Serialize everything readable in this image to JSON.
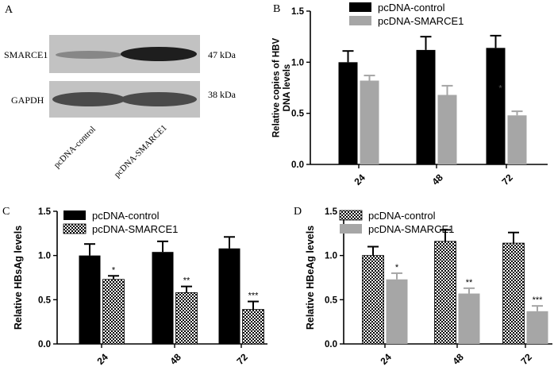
{
  "panels": {
    "A": {
      "letter": "A",
      "bands": [
        {
          "label": "SMARCE1",
          "size": "47 kDa"
        },
        {
          "label": "GAPDH",
          "size": "38 kDa"
        }
      ],
      "lanes": [
        "pcDNA-control",
        "pcDNA-SMARCE1"
      ]
    }
  },
  "chart_data": [
    {
      "letter": "B",
      "type": "bar",
      "title": "",
      "xlabel": "",
      "ylabel": "Relative copies of HBV DNA levels",
      "categories": [
        "24",
        "48",
        "72"
      ],
      "ylim": [
        0,
        1.5
      ],
      "yticks": [
        "0.0",
        "0.5",
        "1.0",
        "1.5"
      ],
      "series": [
        {
          "name": "pcDNA-control",
          "values": [
            1.0,
            1.12,
            1.14
          ],
          "errors": [
            0.11,
            0.13,
            0.12
          ],
          "color": "#000000",
          "pattern": "solid"
        },
        {
          "name": "pcDNA-SMARCE1",
          "values": [
            0.82,
            0.68,
            0.48
          ],
          "errors": [
            0.05,
            0.09,
            0.04
          ],
          "color": "#a6a6a6",
          "pattern": "solid"
        }
      ],
      "annotations": [
        "",
        "",
        "*"
      ],
      "legend": "top-left"
    },
    {
      "letter": "C",
      "type": "bar",
      "title": "",
      "xlabel": "",
      "ylabel": "Relative HBsAg levels",
      "categories": [
        "24",
        "48",
        "72"
      ],
      "ylim": [
        0,
        1.5
      ],
      "yticks": [
        "0.0",
        "0.5",
        "1.0",
        "1.5"
      ],
      "series": [
        {
          "name": "pcDNA-control",
          "values": [
            1.0,
            1.04,
            1.08
          ],
          "errors": [
            0.13,
            0.12,
            0.13
          ],
          "color": "#000000",
          "pattern": "solid"
        },
        {
          "name": "pcDNA-SMARCE1",
          "values": [
            0.73,
            0.58,
            0.39
          ],
          "errors": [
            0.04,
            0.07,
            0.09
          ],
          "color": "#000000",
          "pattern": "checker"
        }
      ],
      "annotations": [
        "*",
        "**",
        "***"
      ],
      "legend": "top-left"
    },
    {
      "letter": "D",
      "type": "bar",
      "title": "",
      "xlabel": "",
      "ylabel": "Relative HBeAg levels",
      "categories": [
        "24",
        "48",
        "72"
      ],
      "ylim": [
        0,
        1.5
      ],
      "yticks": [
        "0.0",
        "0.5",
        "1.0",
        "1.5"
      ],
      "series": [
        {
          "name": "pcDNA-control",
          "values": [
            1.0,
            1.16,
            1.14
          ],
          "errors": [
            0.1,
            0.13,
            0.12
          ],
          "color": "#000000",
          "pattern": "checker"
        },
        {
          "name": "pcDNA-SMARCE1",
          "values": [
            0.73,
            0.57,
            0.37
          ],
          "errors": [
            0.07,
            0.06,
            0.06
          ],
          "color": "#a6a6a6",
          "pattern": "solid"
        }
      ],
      "annotations": [
        "*",
        "**",
        "***"
      ],
      "legend": "top-left"
    }
  ]
}
